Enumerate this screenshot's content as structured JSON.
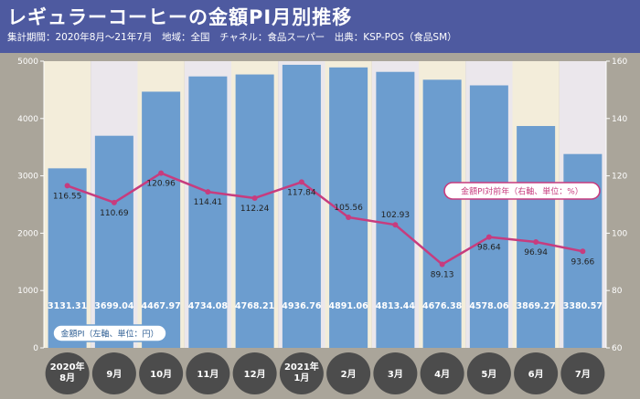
{
  "header": {
    "title": "レギュラーコーヒーの金額PI月別推移",
    "subtitle": "集計期間：2020年8月～21年7月　地域：全国　チャネル：食品スーパー　出典：KSP-POS（食品SM）"
  },
  "legend": {
    "bar_label": "金額PI（左軸、単位：円）",
    "line_label": "金額PI対前年（右軸、単位：%）"
  },
  "colors": {
    "bar": "#6c9dcf",
    "line": "#c73c7e",
    "col_odd": "#f3edda",
    "col_even": "#ebe7ec",
    "bottom_band": "#aaa59a",
    "label_circle": "#4c4c4c"
  },
  "chart_data": {
    "type": "bar",
    "categories": [
      "2020年\n8月",
      "9月",
      "10月",
      "11月",
      "12月",
      "2021年\n1月",
      "2月",
      "3月",
      "4月",
      "5月",
      "6月",
      "7月"
    ],
    "series": [
      {
        "name": "金額PI（左軸、単位：円）",
        "type": "bar",
        "axis": "left",
        "values": [
          3131.31,
          3699.04,
          4467.97,
          4734.08,
          4768.21,
          4936.76,
          4891.06,
          4813.44,
          4676.38,
          4578.06,
          3869.27,
          3380.57
        ]
      },
      {
        "name": "金額PI対前年（右軸、単位：%）",
        "type": "line",
        "axis": "right",
        "values": [
          116.55,
          110.69,
          120.96,
          114.41,
          112.24,
          117.84,
          105.56,
          102.93,
          89.13,
          98.64,
          96.94,
          93.66
        ]
      }
    ],
    "y_left": {
      "min": 0,
      "max": 5000,
      "ticks": [
        0,
        1000,
        2000,
        3000,
        4000,
        5000
      ]
    },
    "y_right": {
      "min": 60,
      "max": 160,
      "ticks": [
        60,
        80,
        100,
        120,
        140,
        160
      ]
    },
    "grid": false,
    "legend_position": "inside"
  }
}
